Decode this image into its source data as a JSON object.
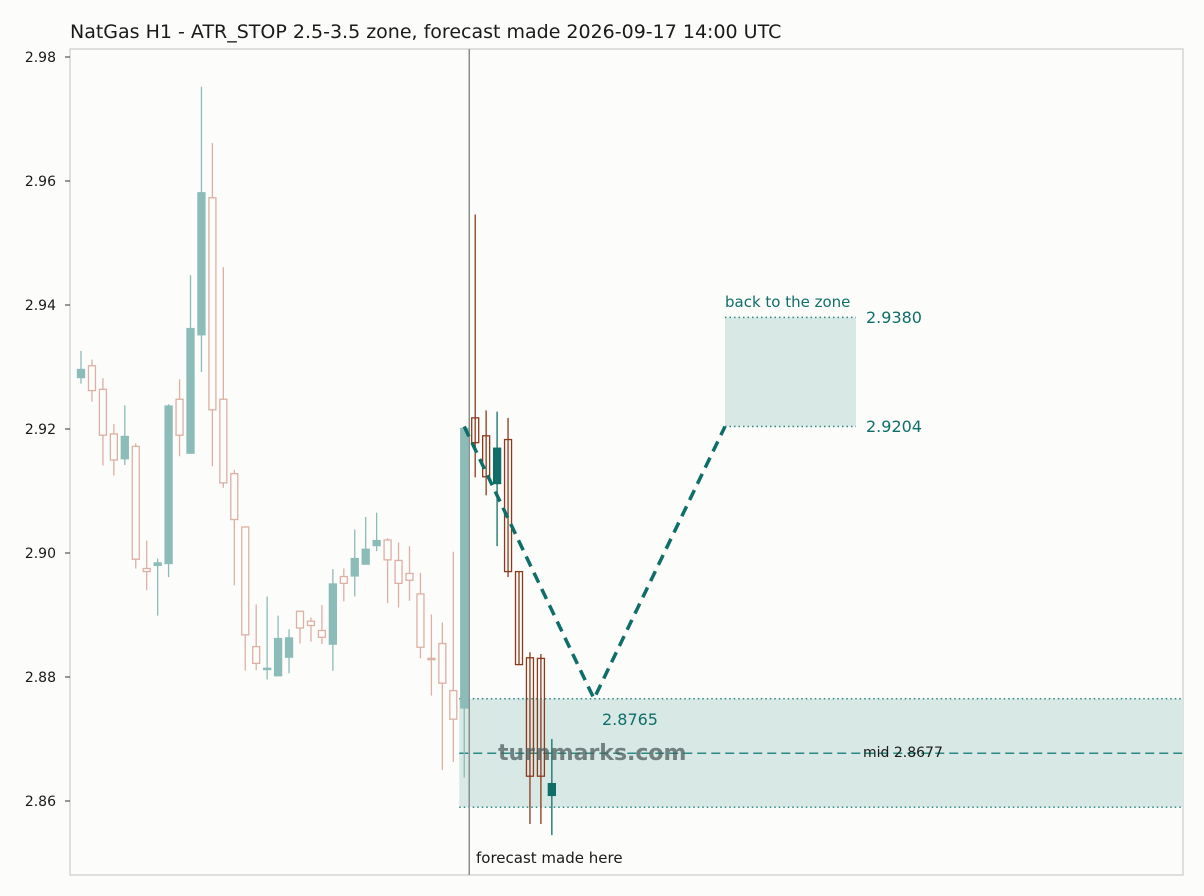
{
  "chart_data": {
    "type": "candlestick",
    "title": "NatGas H1 - ATR_STOP 2.5-3.5 zone, forecast made 2026-09-17 14:00 UTC",
    "xlabel": "",
    "ylabel": "",
    "ylim": [
      2.8475,
      2.9815
    ],
    "yticks": [
      "2.86",
      "2.88",
      "2.90",
      "2.92",
      "2.94",
      "2.96",
      "2.98"
    ],
    "grid": false,
    "colors": {
      "up": "#2a8a82",
      "down": "#b84f26",
      "hist_up": "#8cbcb7",
      "hist_down": "#dcb0a3",
      "accent": "#0f6e68",
      "zone_fill": "#d7e8e5",
      "bar_up_dark": "#0f6e68",
      "bar_down_dark": "#8c3a1b"
    },
    "history": [
      {
        "o": 2.9283,
        "h": 2.9326,
        "l": 2.9273,
        "c": 2.9296
      },
      {
        "o": 2.9302,
        "h": 2.9312,
        "l": 2.9244,
        "c": 2.9262
      },
      {
        "o": 2.9264,
        "h": 2.9282,
        "l": 2.9141,
        "c": 2.919
      },
      {
        "o": 2.9192,
        "h": 2.9208,
        "l": 2.9125,
        "c": 2.915
      },
      {
        "o": 2.9152,
        "h": 2.9238,
        "l": 2.9142,
        "c": 2.9188
      },
      {
        "o": 2.9172,
        "h": 2.9177,
        "l": 2.8975,
        "c": 2.899
      },
      {
        "o": 2.8975,
        "h": 2.902,
        "l": 2.894,
        "c": 2.897
      },
      {
        "o": 2.898,
        "h": 2.8991,
        "l": 2.8899,
        "c": 2.8984
      },
      {
        "o": 2.8983,
        "h": 2.924,
        "l": 2.8961,
        "c": 2.9237
      },
      {
        "o": 2.9248,
        "h": 2.928,
        "l": 2.9156,
        "c": 2.919
      },
      {
        "o": 2.9161,
        "h": 2.9448,
        "l": 2.9161,
        "c": 2.9362
      },
      {
        "o": 2.9352,
        "h": 2.9752,
        "l": 2.9292,
        "c": 2.9581
      },
      {
        "o": 2.9573,
        "h": 2.9661,
        "l": 2.914,
        "c": 2.9231
      },
      {
        "o": 2.9248,
        "h": 2.9461,
        "l": 2.9105,
        "c": 2.9113
      },
      {
        "o": 2.9128,
        "h": 2.9134,
        "l": 2.8948,
        "c": 2.9054
      },
      {
        "o": 2.9042,
        "h": 2.9042,
        "l": 2.881,
        "c": 2.8868
      },
      {
        "o": 2.8849,
        "h": 2.8917,
        "l": 2.8811,
        "c": 2.8822
      },
      {
        "o": 2.8812,
        "h": 2.893,
        "l": 2.8796,
        "c": 2.8814
      },
      {
        "o": 2.8802,
        "h": 2.8899,
        "l": 2.8802,
        "c": 2.8862
      },
      {
        "o": 2.8832,
        "h": 2.8877,
        "l": 2.8806,
        "c": 2.8863
      },
      {
        "o": 2.8906,
        "h": 2.8906,
        "l": 2.8854,
        "c": 2.8879
      },
      {
        "o": 2.889,
        "h": 2.8896,
        "l": 2.8857,
        "c": 2.8883
      },
      {
        "o": 2.8875,
        "h": 2.8916,
        "l": 2.8853,
        "c": 2.8864
      },
      {
        "o": 2.8853,
        "h": 2.8974,
        "l": 2.881,
        "c": 2.895
      },
      {
        "o": 2.8962,
        "h": 2.8975,
        "l": 2.8922,
        "c": 2.8951
      },
      {
        "o": 2.8963,
        "h": 2.9038,
        "l": 2.893,
        "c": 2.8991
      },
      {
        "o": 2.8982,
        "h": 2.9058,
        "l": 2.8982,
        "c": 2.9006
      },
      {
        "o": 2.9012,
        "h": 2.9065,
        "l": 2.9003,
        "c": 2.902
      },
      {
        "o": 2.9021,
        "h": 2.9024,
        "l": 2.8919,
        "c": 2.8989
      },
      {
        "o": 2.8988,
        "h": 2.9017,
        "l": 2.8912,
        "c": 2.8951
      },
      {
        "o": 2.8967,
        "h": 2.9011,
        "l": 2.8923,
        "c": 2.8956
      },
      {
        "o": 2.8934,
        "h": 2.8968,
        "l": 2.883,
        "c": 2.8848
      },
      {
        "o": 2.883,
        "h": 2.8901,
        "l": 2.877,
        "c": 2.8828
      },
      {
        "o": 2.8854,
        "h": 2.8888,
        "l": 2.865,
        "c": 2.879
      },
      {
        "o": 2.8778,
        "h": 2.9002,
        "l": 2.8663,
        "c": 2.8732
      },
      {
        "o": 2.875,
        "h": 2.9202,
        "l": 2.8638,
        "c": 2.9201
      }
    ],
    "after": [
      {
        "o": 2.9218,
        "h": 2.9546,
        "l": 2.9122,
        "c": 2.9178
      },
      {
        "o": 2.9189,
        "h": 2.923,
        "l": 2.9093,
        "c": 2.9123
      },
      {
        "o": 2.9112,
        "h": 2.9228,
        "l": 2.9011,
        "c": 2.9169
      },
      {
        "o": 2.9183,
        "h": 2.9218,
        "l": 2.8961,
        "c": 2.897
      },
      {
        "o": 2.897,
        "h": 2.897,
        "l": 2.8821,
        "c": 2.882
      },
      {
        "o": 2.8831,
        "h": 2.884,
        "l": 2.8563,
        "c": 2.864
      },
      {
        "o": 2.883,
        "h": 2.8837,
        "l": 2.8563,
        "c": 2.864
      },
      {
        "o": 2.8609,
        "h": 2.87,
        "l": 2.8545,
        "c": 2.8628
      }
    ],
    "forecast_path": [
      2.9204,
      2.8765,
      2.9204
    ],
    "levels": {
      "target_zone": [
        2.9204,
        2.938
      ],
      "stop_zone": [
        2.859,
        2.8765
      ],
      "mid": 2.8677
    },
    "annotations": {
      "target_label": "back to the zone",
      "target_high": "2.9380",
      "target_low": "2.9204",
      "trough": "2.8765",
      "mid": "mid 2.8677",
      "forecast_line": "forecast made here",
      "watermark": "turnmarks.com"
    }
  }
}
